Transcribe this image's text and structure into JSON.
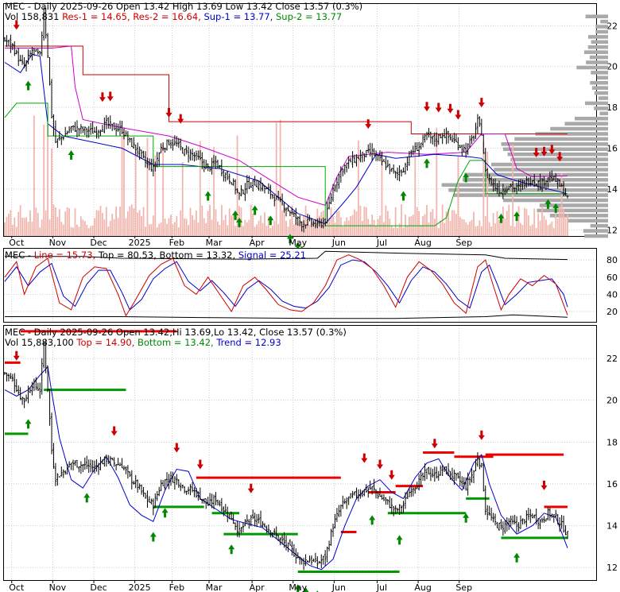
{
  "chart_data": [
    {
      "type": "candlestick",
      "panel": "price-top",
      "header_line1": "MEC - Daily 2025-09-26 Open 13.42  High 13.69  Low 13.42  Close 13.57 (0.3%)",
      "header_line2": {
        "vol": "Vol 158,831",
        "res1": "Res-1 = 14.65,",
        "res2": "Res-2 = 16.64,",
        "sup1": "Sup-1 = 13.77,",
        "sup2": "Sup-2 = 13.77"
      },
      "ylim": [
        11.7,
        23.1
      ],
      "yticks": [
        12,
        14,
        16,
        18,
        20,
        22
      ],
      "x_months": [
        "Oct",
        "Nov",
        "Dec",
        "2025",
        "Feb",
        "Mar",
        "Apr",
        "May",
        "Jun",
        "Jul",
        "Aug",
        "Sep"
      ],
      "close_series": [
        [
          0,
          21.3
        ],
        [
          4,
          21.0
        ],
        [
          8,
          20.2
        ],
        [
          10,
          20.0
        ],
        [
          14,
          20.8
        ],
        [
          18,
          20.5
        ],
        [
          20,
          22.7
        ],
        [
          22,
          20.6
        ],
        [
          24,
          17.6
        ],
        [
          26,
          16.3
        ],
        [
          30,
          16.6
        ],
        [
          34,
          17.0
        ],
        [
          40,
          16.9
        ],
        [
          46,
          16.8
        ],
        [
          52,
          17.2
        ],
        [
          56,
          17.0
        ],
        [
          60,
          16.9
        ],
        [
          64,
          16.3
        ],
        [
          68,
          15.9
        ],
        [
          72,
          15.3
        ],
        [
          76,
          15.0
        ],
        [
          80,
          16.0
        ],
        [
          84,
          16.3
        ],
        [
          88,
          16.2
        ],
        [
          92,
          15.8
        ],
        [
          96,
          15.7
        ],
        [
          100,
          15.4
        ],
        [
          104,
          15.0
        ],
        [
          108,
          15.3
        ],
        [
          112,
          14.8
        ],
        [
          116,
          14.4
        ],
        [
          120,
          13.7
        ],
        [
          124,
          14.2
        ],
        [
          128,
          14.3
        ],
        [
          132,
          14.1
        ],
        [
          136,
          13.8
        ],
        [
          140,
          13.4
        ],
        [
          144,
          13.1
        ],
        [
          148,
          12.7
        ],
        [
          152,
          12.3
        ],
        [
          156,
          12.4
        ],
        [
          160,
          12.2
        ],
        [
          164,
          12.5
        ],
        [
          168,
          14.0
        ],
        [
          172,
          14.9
        ],
        [
          176,
          15.3
        ],
        [
          180,
          15.5
        ],
        [
          184,
          15.7
        ],
        [
          188,
          15.8
        ],
        [
          192,
          15.4
        ],
        [
          196,
          15.1
        ],
        [
          200,
          14.7
        ],
        [
          204,
          15.0
        ],
        [
          208,
          15.8
        ],
        [
          212,
          16.1
        ],
        [
          216,
          16.6
        ],
        [
          220,
          16.4
        ],
        [
          224,
          16.7
        ],
        [
          228,
          16.5
        ],
        [
          232,
          16.2
        ],
        [
          236,
          15.9
        ],
        [
          240,
          16.6
        ],
        [
          242,
          17.3
        ],
        [
          244,
          16.8
        ],
        [
          246,
          14.8
        ],
        [
          250,
          14.2
        ],
        [
          254,
          13.9
        ],
        [
          258,
          14.2
        ],
        [
          262,
          14.0
        ],
        [
          266,
          14.3
        ],
        [
          270,
          14.5
        ],
        [
          274,
          14.2
        ],
        [
          278,
          14.6
        ],
        [
          282,
          14.4
        ],
        [
          286,
          13.9
        ],
        [
          288,
          13.57
        ]
      ],
      "resistance_series": [
        [
          0,
          21.0
        ],
        [
          40,
          21.0
        ],
        [
          40,
          19.6
        ],
        [
          84,
          19.6
        ],
        [
          84,
          17.3
        ],
        [
          208,
          17.3
        ],
        [
          208,
          16.7
        ],
        [
          288,
          16.7
        ]
      ],
      "resistance2_series": [
        [
          0,
          20.9
        ],
        [
          24,
          20.9
        ],
        [
          34,
          21.0
        ],
        [
          36,
          19.0
        ],
        [
          40,
          17.4
        ],
        [
          60,
          17.0
        ],
        [
          84,
          16.6
        ],
        [
          100,
          16.1
        ],
        [
          120,
          15.4
        ],
        [
          150,
          13.6
        ],
        [
          164,
          13.2
        ],
        [
          170,
          14.6
        ],
        [
          176,
          15.6
        ],
        [
          196,
          15.8
        ],
        [
          216,
          15.7
        ],
        [
          236,
          15.8
        ],
        [
          244,
          16.7
        ],
        [
          256,
          16.7
        ],
        [
          262,
          15.0
        ],
        [
          270,
          14.6
        ],
        [
          288,
          14.65
        ]
      ],
      "support_series": [
        [
          0,
          20.2
        ],
        [
          8,
          19.7
        ],
        [
          14,
          20.6
        ],
        [
          18,
          20.5
        ],
        [
          22,
          17.2
        ],
        [
          30,
          16.6
        ],
        [
          40,
          16.4
        ],
        [
          60,
          16.0
        ],
        [
          76,
          15.2
        ],
        [
          90,
          15.2
        ],
        [
          110,
          15.0
        ],
        [
          130,
          14.4
        ],
        [
          150,
          12.8
        ],
        [
          164,
          12.3
        ],
        [
          174,
          13.4
        ],
        [
          180,
          14.1
        ],
        [
          190,
          15.7
        ],
        [
          200,
          15.5
        ],
        [
          220,
          15.7
        ],
        [
          236,
          15.6
        ],
        [
          244,
          15.5
        ],
        [
          252,
          14.7
        ],
        [
          262,
          14.4
        ],
        [
          274,
          14.1
        ],
        [
          288,
          13.77
        ]
      ],
      "support2_series": [
        [
          0,
          17.5
        ],
        [
          6,
          18.2
        ],
        [
          22,
          18.2
        ],
        [
          22,
          16.6
        ],
        [
          76,
          16.6
        ],
        [
          76,
          15.1
        ],
        [
          164,
          15.1
        ],
        [
          164,
          12.2
        ],
        [
          220,
          12.2
        ],
        [
          226,
          12.6
        ],
        [
          232,
          14.4
        ],
        [
          238,
          15.4
        ],
        [
          246,
          15.4
        ],
        [
          246,
          13.77
        ],
        [
          288,
          13.77
        ]
      ],
      "buy_arrows": [
        12,
        34,
        104,
        118,
        120,
        128,
        136,
        146,
        150,
        152,
        160,
        204,
        216,
        236,
        254,
        262,
        278,
        282
      ],
      "sell_arrows": [
        6,
        50,
        54,
        84,
        90,
        186,
        216,
        222,
        228,
        232,
        244,
        272,
        276,
        280,
        284
      ]
    },
    {
      "type": "line",
      "panel": "stochastic",
      "header": {
        "name": "MEC -",
        "line": "Line = 15.73,",
        "top": "Top = 80.53,",
        "bottom": "Bottom = 13.32,",
        "signal": "Signal = 25.21"
      },
      "ylim": [
        8,
        94
      ],
      "yticks": [
        20,
        40,
        60,
        80
      ],
      "line_series": [
        [
          0,
          60
        ],
        [
          6,
          78
        ],
        [
          10,
          40
        ],
        [
          16,
          72
        ],
        [
          22,
          82
        ],
        [
          28,
          30
        ],
        [
          34,
          22
        ],
        [
          40,
          60
        ],
        [
          46,
          72
        ],
        [
          52,
          70
        ],
        [
          58,
          40
        ],
        [
          62,
          15
        ],
        [
          66,
          30
        ],
        [
          74,
          62
        ],
        [
          80,
          75
        ],
        [
          86,
          82
        ],
        [
          92,
          50
        ],
        [
          98,
          40
        ],
        [
          104,
          60
        ],
        [
          110,
          40
        ],
        [
          116,
          20
        ],
        [
          122,
          50
        ],
        [
          128,
          60
        ],
        [
          134,
          45
        ],
        [
          140,
          28
        ],
        [
          146,
          22
        ],
        [
          152,
          20
        ],
        [
          158,
          30
        ],
        [
          164,
          50
        ],
        [
          170,
          80
        ],
        [
          176,
          86
        ],
        [
          182,
          80
        ],
        [
          188,
          70
        ],
        [
          194,
          50
        ],
        [
          200,
          25
        ],
        [
          206,
          60
        ],
        [
          212,
          78
        ],
        [
          218,
          68
        ],
        [
          224,
          52
        ],
        [
          230,
          30
        ],
        [
          236,
          18
        ],
        [
          242,
          72
        ],
        [
          246,
          80
        ],
        [
          250,
          50
        ],
        [
          254,
          22
        ],
        [
          258,
          40
        ],
        [
          264,
          58
        ],
        [
          270,
          50
        ],
        [
          276,
          62
        ],
        [
          282,
          52
        ],
        [
          288,
          15.73
        ]
      ],
      "signal_series": [
        [
          0,
          55
        ],
        [
          6,
          72
        ],
        [
          12,
          50
        ],
        [
          18,
          66
        ],
        [
          24,
          76
        ],
        [
          30,
          38
        ],
        [
          36,
          26
        ],
        [
          42,
          52
        ],
        [
          48,
          68
        ],
        [
          54,
          68
        ],
        [
          60,
          42
        ],
        [
          64,
          22
        ],
        [
          70,
          34
        ],
        [
          76,
          58
        ],
        [
          82,
          70
        ],
        [
          88,
          78
        ],
        [
          94,
          55
        ],
        [
          100,
          44
        ],
        [
          106,
          56
        ],
        [
          112,
          42
        ],
        [
          118,
          26
        ],
        [
          124,
          46
        ],
        [
          130,
          56
        ],
        [
          136,
          46
        ],
        [
          142,
          32
        ],
        [
          148,
          26
        ],
        [
          154,
          24
        ],
        [
          160,
          32
        ],
        [
          166,
          48
        ],
        [
          172,
          74
        ],
        [
          178,
          80
        ],
        [
          184,
          78
        ],
        [
          190,
          66
        ],
        [
          196,
          50
        ],
        [
          202,
          30
        ],
        [
          208,
          56
        ],
        [
          214,
          72
        ],
        [
          220,
          66
        ],
        [
          226,
          52
        ],
        [
          232,
          34
        ],
        [
          238,
          24
        ],
        [
          244,
          66
        ],
        [
          248,
          74
        ],
        [
          252,
          52
        ],
        [
          256,
          28
        ],
        [
          262,
          40
        ],
        [
          268,
          54
        ],
        [
          274,
          56
        ],
        [
          280,
          58
        ],
        [
          286,
          40
        ],
        [
          288,
          25.21
        ]
      ],
      "top_series": [
        [
          0,
          84
        ],
        [
          40,
          84
        ],
        [
          60,
          82
        ],
        [
          120,
          81
        ],
        [
          160,
          82
        ],
        [
          164,
          90
        ],
        [
          200,
          88
        ],
        [
          246,
          86
        ],
        [
          256,
          82
        ],
        [
          288,
          80.53
        ]
      ],
      "bottom_series": [
        [
          0,
          14
        ],
        [
          60,
          14
        ],
        [
          100,
          13
        ],
        [
          160,
          12
        ],
        [
          200,
          12
        ],
        [
          246,
          14
        ],
        [
          260,
          16
        ],
        [
          288,
          13.32
        ]
      ]
    },
    {
      "type": "candlestick",
      "panel": "price-bottom",
      "header_line1": "MEC - Daily 2025-09-26 Open 13.42,Hi 13.69,Lo 13.42, Close 13.57 (0.3%)",
      "header_line2": {
        "vol": "Vol 15,883,100",
        "top": "Top = 14.90,",
        "bottom": "Bottom = 13.42,",
        "trend": "Trend = 12.93"
      },
      "ylim": [
        11.4,
        23.6
      ],
      "yticks": [
        12,
        14,
        16,
        18,
        20,
        22
      ],
      "x_months": [
        "Oct",
        "Nov",
        "Dec",
        "2025",
        "Feb",
        "Mar",
        "Apr",
        "May",
        "Jun",
        "Jul",
        "Aug",
        "Sep"
      ],
      "trend_series": [
        [
          0,
          20.5
        ],
        [
          6,
          20.2
        ],
        [
          12,
          20.5
        ],
        [
          18,
          21.2
        ],
        [
          22,
          21.6
        ],
        [
          24,
          20.4
        ],
        [
          28,
          18.2
        ],
        [
          34,
          16.2
        ],
        [
          40,
          15.8
        ],
        [
          46,
          16.7
        ],
        [
          52,
          17.3
        ],
        [
          58,
          16.3
        ],
        [
          64,
          15.0
        ],
        [
          70,
          14.5
        ],
        [
          76,
          14.2
        ],
        [
          82,
          15.7
        ],
        [
          88,
          16.7
        ],
        [
          94,
          16.6
        ],
        [
          100,
          15.3
        ],
        [
          108,
          14.8
        ],
        [
          116,
          14.3
        ],
        [
          124,
          14.1
        ],
        [
          132,
          13.9
        ],
        [
          140,
          13.3
        ],
        [
          148,
          12.7
        ],
        [
          156,
          12.1
        ],
        [
          162,
          11.9
        ],
        [
          168,
          12.4
        ],
        [
          174,
          14.0
        ],
        [
          180,
          15.3
        ],
        [
          186,
          15.9
        ],
        [
          192,
          16.2
        ],
        [
          198,
          15.6
        ],
        [
          204,
          15.3
        ],
        [
          210,
          16.3
        ],
        [
          216,
          17.0
        ],
        [
          222,
          17.2
        ],
        [
          228,
          16.3
        ],
        [
          234,
          15.7
        ],
        [
          240,
          17.0
        ],
        [
          244,
          17.4
        ],
        [
          248,
          16.0
        ],
        [
          254,
          14.5
        ],
        [
          262,
          13.6
        ],
        [
          270,
          14.0
        ],
        [
          276,
          14.6
        ],
        [
          282,
          14.4
        ],
        [
          288,
          12.93
        ]
      ],
      "top_levels": [
        [
          0,
          8,
          21.8
        ],
        [
          8,
          88,
          23.3
        ],
        [
          98,
          172,
          16.3
        ],
        [
          172,
          180,
          13.7
        ],
        [
          186,
          200,
          15.6
        ],
        [
          200,
          214,
          15.9
        ],
        [
          214,
          230,
          17.5
        ],
        [
          230,
          250,
          17.3
        ],
        [
          246,
          286,
          17.4
        ],
        [
          276,
          288,
          14.9
        ]
      ],
      "bottom_levels": [
        [
          0,
          12,
          18.4
        ],
        [
          20,
          62,
          20.5
        ],
        [
          76,
          102,
          14.9
        ],
        [
          106,
          120,
          14.6
        ],
        [
          112,
          150,
          13.6
        ],
        [
          150,
          202,
          11.8
        ],
        [
          196,
          236,
          14.6
        ],
        [
          236,
          248,
          15.3
        ],
        [
          254,
          288,
          13.42
        ]
      ],
      "buy_arrows": [
        12,
        42,
        76,
        82,
        116,
        150,
        154,
        160,
        188,
        202,
        236,
        262
      ],
      "sell_arrows": [
        6,
        56,
        88,
        100,
        126,
        184,
        192,
        198,
        220,
        244,
        276
      ]
    }
  ]
}
